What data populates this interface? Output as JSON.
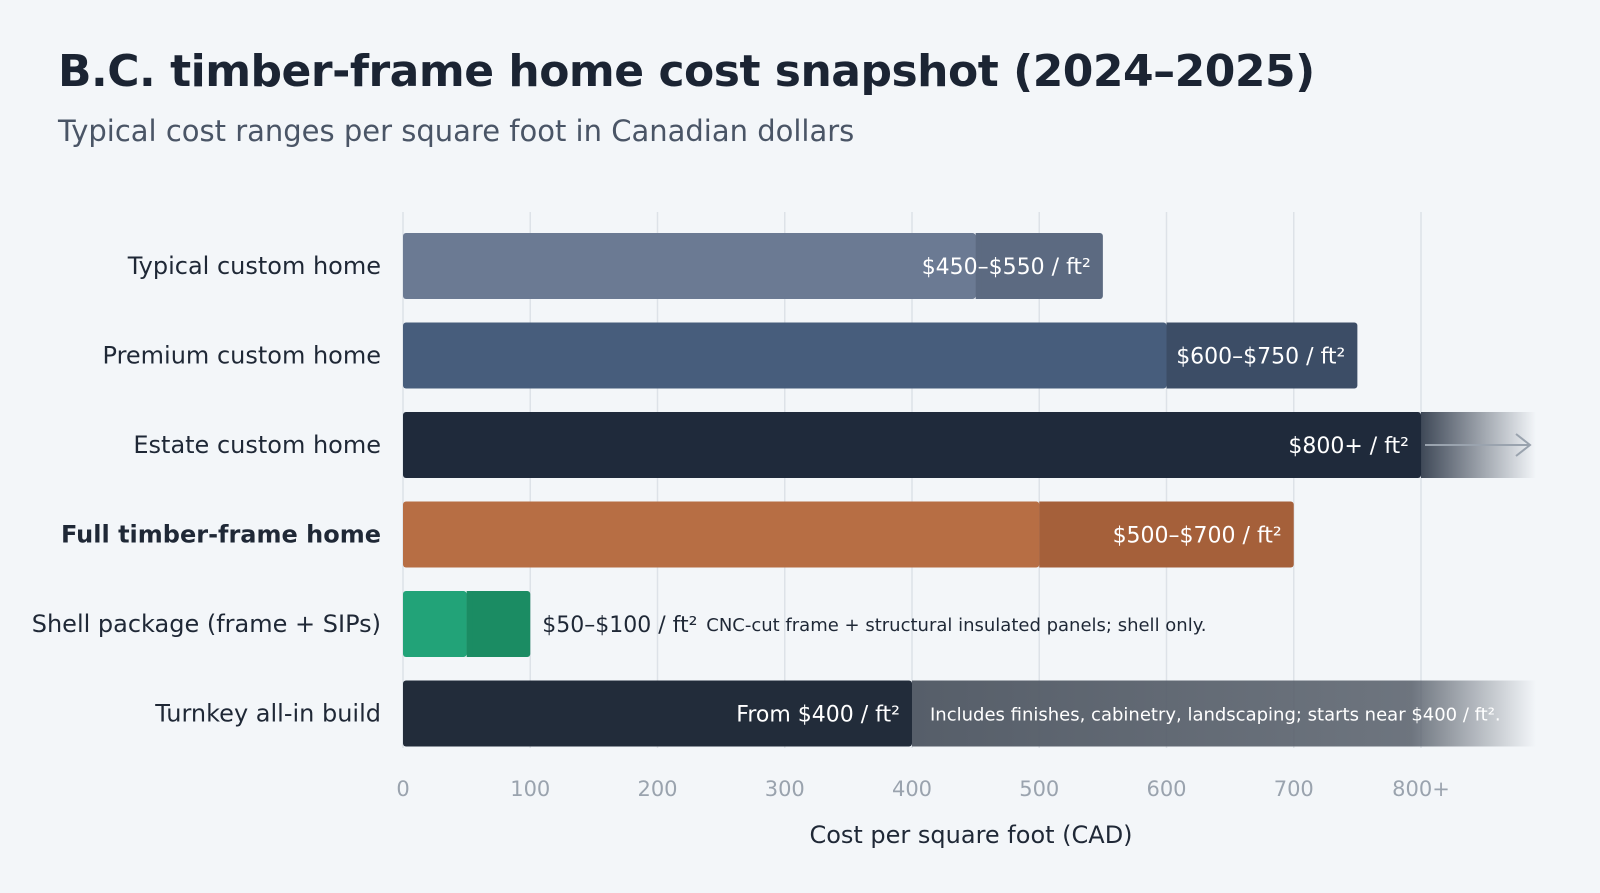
{
  "page": {
    "title": "B.C. timber-frame home cost snapshot (2024–2025)",
    "subtitle": "Typical cost ranges per square foot in Canadian dollars"
  },
  "colors": {
    "background": "#f3f6f9",
    "grid": "#dde2e8",
    "tick": "#9aa3ae",
    "text": "#1f2836"
  },
  "chart_data": {
    "type": "bar",
    "orientation": "horizontal",
    "title": "B.C. timber-frame home cost snapshot (2024–2025)",
    "subtitle": "Typical cost ranges per square foot in Canadian dollars",
    "xlabel": "Cost per square foot (CAD)",
    "ylabel": "",
    "xlim": [
      0,
      800
    ],
    "x_ticks": [
      0,
      100,
      200,
      300,
      400,
      500,
      600,
      700,
      800
    ],
    "x_tick_labels": [
      "0",
      "100",
      "200",
      "300",
      "400",
      "500",
      "600",
      "700",
      "800+"
    ],
    "grid": true,
    "legend": "none",
    "categories": [
      "Typical custom home",
      "Premium custom home",
      "Estate custom home",
      "Full timber-frame home",
      "Shell package (frame + SIPs)",
      "Turnkey all-in build"
    ],
    "bars": [
      {
        "category": "Typical custom home",
        "low": 450,
        "high": 550,
        "open_ended": false,
        "label": "$450–$550 / ft²",
        "note": "",
        "color": "#6b7a93",
        "range_color": "#5c6a81",
        "label_color": "#ffffff",
        "bold": false
      },
      {
        "category": "Premium custom home",
        "low": 600,
        "high": 750,
        "open_ended": false,
        "label": "$600–$750 / ft²",
        "note": "",
        "color": "#475d7c",
        "range_color": "#3c4d66",
        "label_color": "#ffffff",
        "bold": false
      },
      {
        "category": "Estate custom home",
        "low": 800,
        "high": 800,
        "open_ended": true,
        "label": "$800+ / ft²",
        "note": "",
        "color": "#1f2a3b",
        "range_color": "#1f2a3b",
        "label_color": "#ffffff",
        "bold": false
      },
      {
        "category": "Full timber-frame home",
        "low": 500,
        "high": 700,
        "open_ended": false,
        "label": "$500–$700 / ft²",
        "note": "",
        "color": "#b76e44",
        "range_color": "#a5603a",
        "label_color": "#ffffff",
        "bold": true
      },
      {
        "category": "Shell package (frame + SIPs)",
        "low": 50,
        "high": 100,
        "open_ended": false,
        "label": "$50–$100 / ft²",
        "note": "CNC-cut frame + structural insulated panels; shell only.",
        "color": "#22a378",
        "range_color": "#1b8c63",
        "label_color": "#1f2836",
        "bold": false
      },
      {
        "category": "Turnkey all-in build",
        "low": 400,
        "high": 400,
        "open_ended": true,
        "label": "From $400 / ft²",
        "note": "Includes finishes, cabinetry, landscaping; starts near $400 / ft².",
        "color": "#222c3a",
        "range_color": "#565e69",
        "label_color": "#ffffff",
        "bold": false
      }
    ]
  }
}
